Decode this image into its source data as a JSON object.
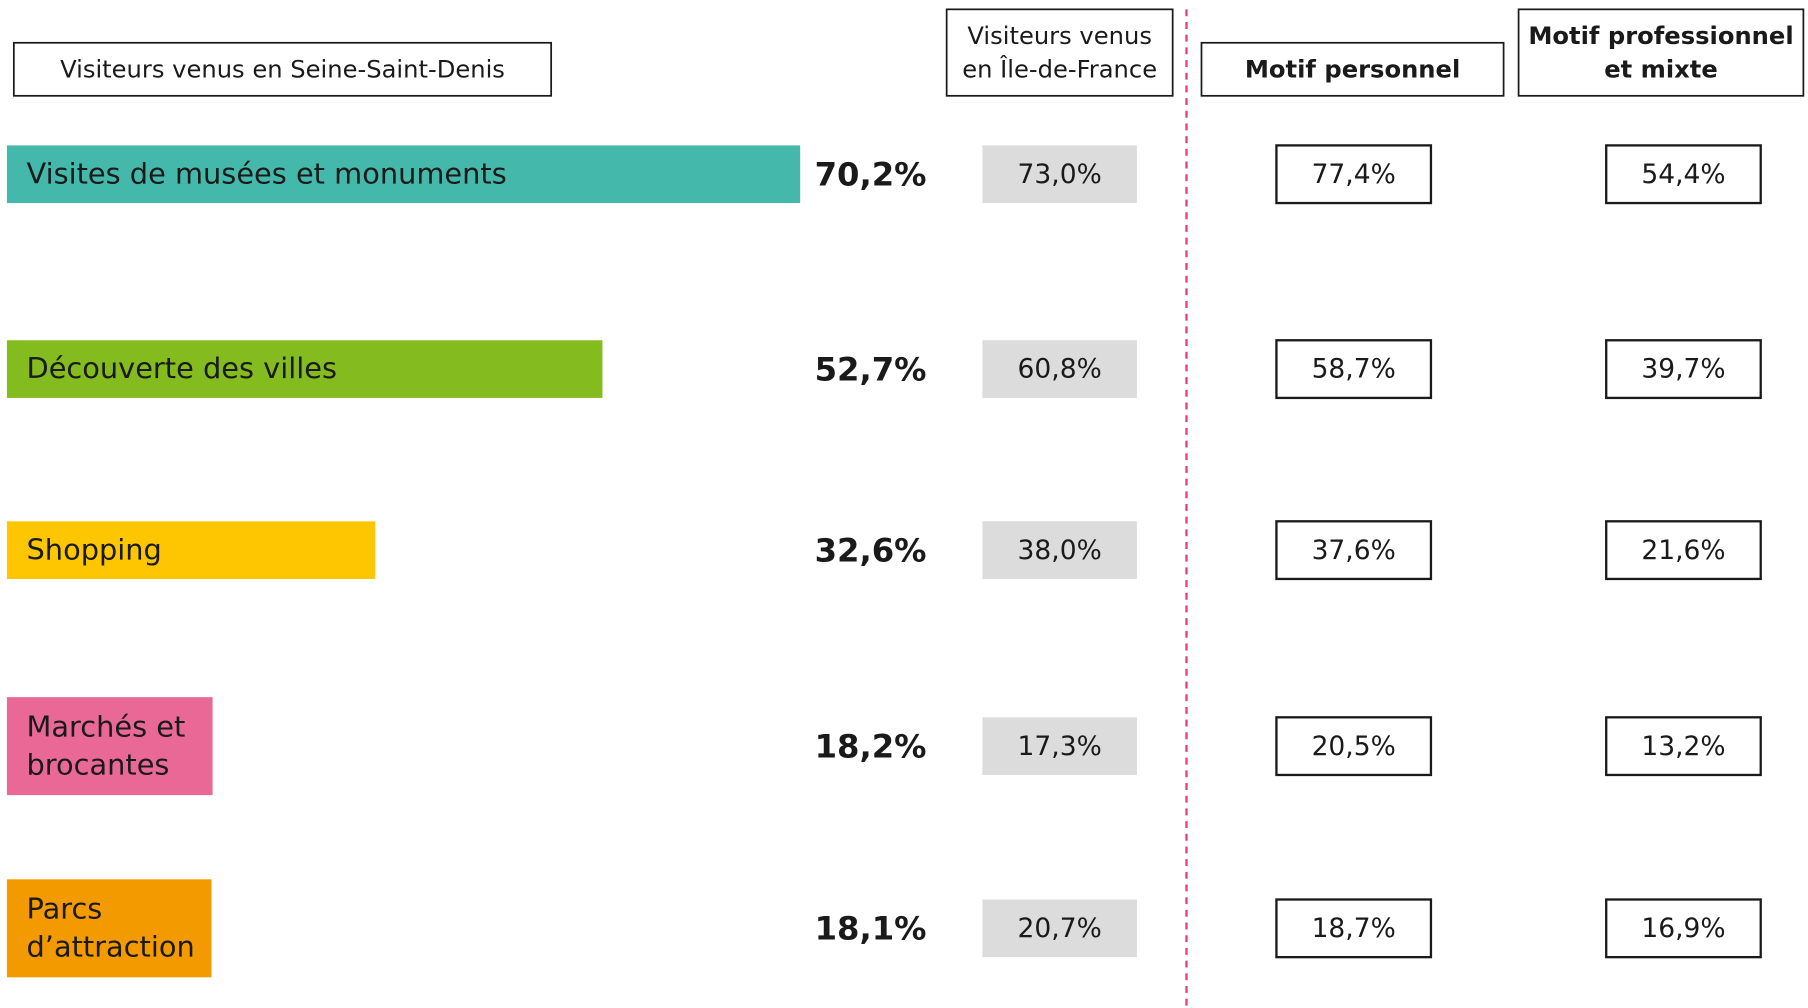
{
  "chart_data": {
    "type": "bar",
    "orientation": "horizontal",
    "xlim": [
      0,
      100
    ],
    "categories": [
      [
        "Visites de musées et monuments"
      ],
      [
        "Découverte des villes"
      ],
      [
        "Shopping"
      ],
      [
        "Marchés et",
        "brocantes"
      ],
      [
        "Parcs",
        "d’attraction"
      ]
    ],
    "category_label_colors": [
      "#ffffff",
      "#ffffff",
      "#1a1a1a",
      "#1a1a1a",
      "#1a1a1a"
    ],
    "series": [
      {
        "name": [
          "Visiteurs venus en Seine-Saint-Denis"
        ],
        "colors": [
          "#45b8ac",
          "#84bb1e",
          "#fdc600",
          "#ea6896",
          "#f39a00"
        ],
        "values": [
          70.2,
          52.7,
          32.6,
          18.2,
          18.1
        ],
        "value_labels": [
          "70,2%",
          "52,7%",
          "32,6%",
          "18,2%",
          "18,1%"
        ]
      },
      {
        "name": [
          "Visiteurs venus",
          "en Île-de-France"
        ],
        "color": "#dcdcdc",
        "values": [
          73.0,
          60.8,
          38.0,
          17.3,
          20.7
        ],
        "value_labels": [
          "73,0%",
          "60,8%",
          "38,0%",
          "17,3%",
          "20,7%"
        ]
      },
      {
        "name": [
          "Motif personnel"
        ],
        "color": "#ffffff",
        "highlight": [
          true,
          true,
          true,
          false,
          false
        ],
        "highlight_color": "#e2231a",
        "values": [
          77.4,
          58.7,
          37.6,
          20.5,
          18.7
        ],
        "value_labels": [
          "77,4%",
          "58,7%",
          "37,6%",
          "20,5%",
          "18,7%"
        ]
      },
      {
        "name": [
          "Motif professionnel",
          "et mixte"
        ],
        "color": "#ffffff",
        "values": [
          54.4,
          39.7,
          21.6,
          13.2,
          16.9
        ],
        "value_labels": [
          "54,4%",
          "39,7%",
          "21,6%",
          "13,2%",
          "16,9%"
        ]
      }
    ]
  }
}
